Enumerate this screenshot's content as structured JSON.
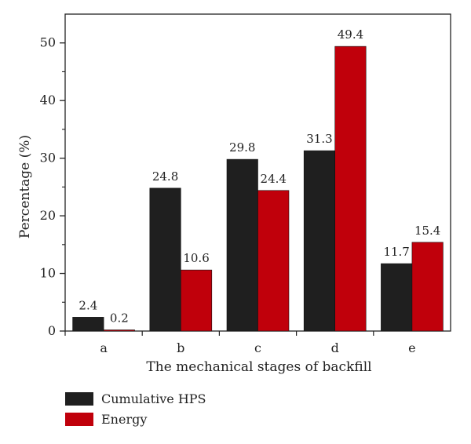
{
  "chart_data": {
    "type": "bar",
    "xlabel": "The mechanical stages of backfill",
    "ylabel": "Percentage (%)",
    "ylim": [
      0,
      55
    ],
    "yticks": [
      0,
      10,
      20,
      30,
      40,
      50
    ],
    "categories": [
      "a",
      "b",
      "c",
      "d",
      "e"
    ],
    "series": [
      {
        "name": "Cumulative HPS",
        "color": "#1f1f1f",
        "values": [
          2.4,
          24.8,
          29.8,
          31.3,
          11.7
        ],
        "labels": [
          "2.4",
          "24.8",
          "29.8",
          "31.3",
          "11.7"
        ]
      },
      {
        "name": "Energy",
        "color": "#c0000b",
        "values": [
          0.2,
          10.6,
          24.4,
          49.4,
          15.4
        ],
        "labels": [
          "0.2",
          "10.6",
          "24.4",
          "49.4",
          "15.4"
        ]
      }
    ],
    "grid": false,
    "legend_position": "bottom-left"
  }
}
